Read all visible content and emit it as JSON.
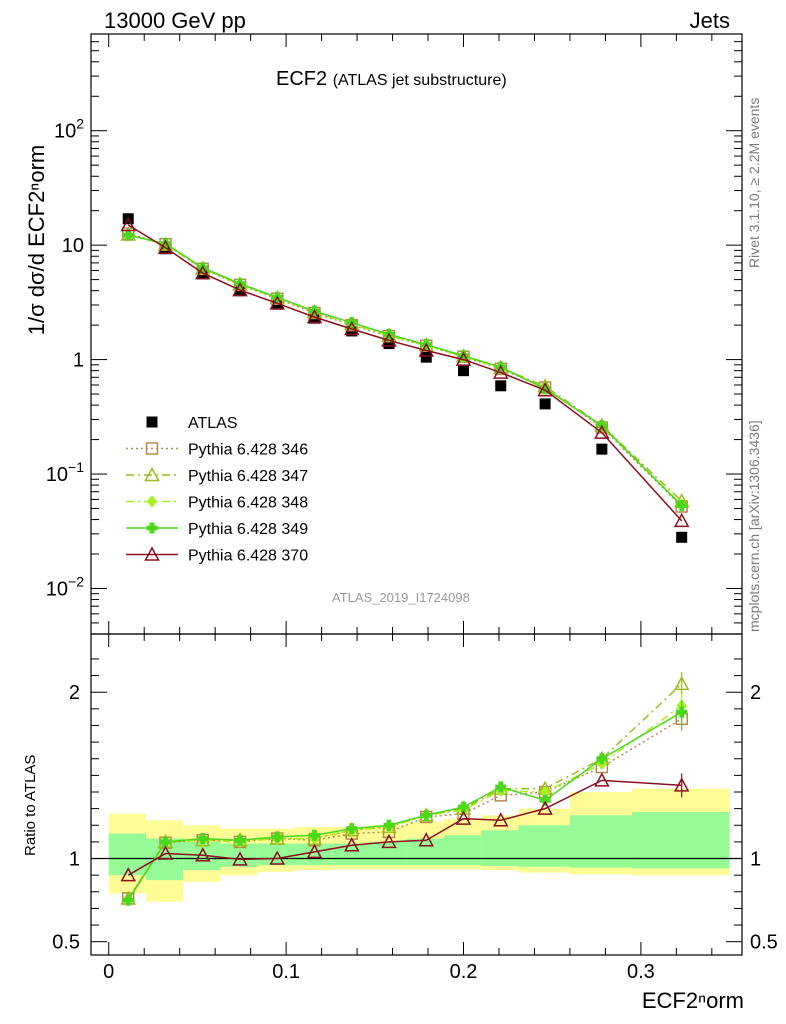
{
  "header": {
    "left": "13000 GeV pp",
    "right": "Jets"
  },
  "title": {
    "main": "ECF2",
    "sub": "(ATLAS jet substructure)"
  },
  "reference": "ATLAS_2019_I1724098",
  "side_labels": {
    "top": "Rivet 3.1.10, ≥ 2.2M events",
    "bottom": "mcplots.cern.ch [arXiv:1306.3436]"
  },
  "axes": {
    "xlabel": "ECF2ⁿorm",
    "ylabel_main": "1/σ dσ/d ECF2ⁿorm",
    "ylabel_ratio": "Ratio to ATLAS"
  },
  "colors": {
    "atlas": "#000000",
    "p346": "#b58a4c",
    "p347": "#9cbc1e",
    "p348": "#a8f020",
    "p349": "#4ad81a",
    "p370": "#8b0f1e",
    "band_outer": "#fffc96",
    "band_inner": "#96fa96"
  },
  "chart_data": [
    {
      "type": "line",
      "yscale": "log",
      "xlim": [
        -0.01,
        0.357
      ],
      "ylim": [
        0.004,
        700
      ],
      "ytick_labels": [
        "10^-2",
        "10^-1",
        "1",
        "10",
        "10^2"
      ],
      "ytick_values": [
        0.01,
        0.1,
        1,
        10,
        100
      ],
      "legend_placement": "lower-left",
      "x": [
        0.011,
        0.032,
        0.053,
        0.074,
        0.095,
        0.116,
        0.137,
        0.158,
        0.179,
        0.2,
        0.221,
        0.246,
        0.278,
        0.323
      ],
      "series": [
        {
          "name": "ATLAS",
          "style": "square",
          "values": [
            17.0,
            9.3,
            5.6,
            4.0,
            3.05,
            2.3,
            1.78,
            1.38,
            1.05,
            0.8,
            0.59,
            0.41,
            0.165,
            0.028
          ]
        },
        {
          "name": "Pythia 6.428 346",
          "style": "open-square-dotted",
          "values": [
            12.6,
            10.2,
            6.2,
            4.5,
            3.4,
            2.55,
            2.0,
            1.6,
            1.32,
            1.06,
            0.83,
            0.57,
            0.255,
            0.052
          ]
        },
        {
          "name": "Pythia 6.428 347",
          "style": "open-triangle-dashdot",
          "values": [
            12.4,
            10.1,
            6.25,
            4.55,
            3.45,
            2.6,
            2.05,
            1.62,
            1.34,
            1.07,
            0.85,
            0.585,
            0.265,
            0.058
          ]
        },
        {
          "name": "Pythia 6.428 348",
          "style": "diamond-dashdot",
          "values": [
            12.3,
            10.2,
            6.3,
            4.55,
            3.45,
            2.6,
            2.05,
            1.62,
            1.33,
            1.06,
            0.84,
            0.565,
            0.26,
            0.054
          ]
        },
        {
          "name": "Pythia 6.428 349",
          "style": "cross-solid",
          "values": [
            12.2,
            10.3,
            6.35,
            4.6,
            3.5,
            2.65,
            2.1,
            1.66,
            1.35,
            1.08,
            0.86,
            0.555,
            0.265,
            0.053
          ]
        },
        {
          "name": "Pythia 6.428 370",
          "style": "open-triangle-solid",
          "values": [
            15.0,
            9.5,
            5.7,
            4.05,
            3.1,
            2.35,
            1.85,
            1.47,
            1.2,
            1.0,
            0.77,
            0.54,
            0.23,
            0.039
          ]
        }
      ]
    },
    {
      "type": "line",
      "name": "ratio",
      "ylim": [
        0.42,
        2.35
      ],
      "ytick_labels": [
        "0.5",
        "1",
        "2"
      ],
      "ytick_values": [
        0.5,
        1,
        2
      ],
      "x": [
        0.011,
        0.032,
        0.053,
        0.074,
        0.095,
        0.116,
        0.137,
        0.158,
        0.179,
        0.2,
        0.221,
        0.246,
        0.278,
        0.323
      ],
      "series": [
        {
          "name": "Pythia 6.428 346",
          "values": [
            0.76,
            1.095,
            1.11,
            1.1,
            1.12,
            1.11,
            1.15,
            1.16,
            1.25,
            1.27,
            1.38,
            1.4,
            1.55,
            1.84
          ]
        },
        {
          "name": "Pythia 6.428 347",
          "values": [
            0.76,
            1.1,
            1.11,
            1.11,
            1.12,
            1.12,
            1.17,
            1.19,
            1.26,
            1.3,
            1.42,
            1.42,
            1.6,
            2.05
          ]
        },
        {
          "name": "Pythia 6.428 348",
          "values": [
            0.75,
            1.1,
            1.11,
            1.1,
            1.12,
            1.12,
            1.17,
            1.19,
            1.26,
            1.29,
            1.41,
            1.4,
            1.57,
            1.92
          ]
        },
        {
          "name": "Pythia 6.428 349",
          "values": [
            0.75,
            1.1,
            1.12,
            1.11,
            1.13,
            1.14,
            1.18,
            1.2,
            1.26,
            1.31,
            1.43,
            1.35,
            1.6,
            1.88
          ]
        },
        {
          "name": "Pythia 6.428 370",
          "values": [
            0.9,
            1.03,
            1.02,
            0.995,
            1.0,
            1.04,
            1.08,
            1.1,
            1.11,
            1.24,
            1.23,
            1.3,
            1.47,
            1.44
          ]
        }
      ],
      "bands": {
        "edges": [
          0.0,
          0.021,
          0.042,
          0.063,
          0.084,
          0.105,
          0.126,
          0.147,
          0.168,
          0.189,
          0.21,
          0.231,
          0.26,
          0.295,
          0.35
        ],
        "outer_low": [
          0.79,
          0.74,
          0.86,
          0.9,
          0.92,
          0.93,
          0.935,
          0.935,
          0.935,
          0.935,
          0.93,
          0.915,
          0.905,
          0.9
        ],
        "outer_high": [
          1.27,
          1.23,
          1.2,
          1.18,
          1.18,
          1.19,
          1.19,
          1.2,
          1.22,
          1.24,
          1.26,
          1.3,
          1.4,
          1.42
        ],
        "inner_low": [
          0.9,
          0.87,
          0.93,
          0.95,
          0.96,
          0.96,
          0.96,
          0.96,
          0.96,
          0.96,
          0.955,
          0.95,
          0.945,
          0.94
        ],
        "inner_high": [
          1.15,
          1.12,
          1.1,
          1.09,
          1.09,
          1.09,
          1.09,
          1.1,
          1.12,
          1.14,
          1.17,
          1.2,
          1.26,
          1.28
        ]
      }
    }
  ]
}
